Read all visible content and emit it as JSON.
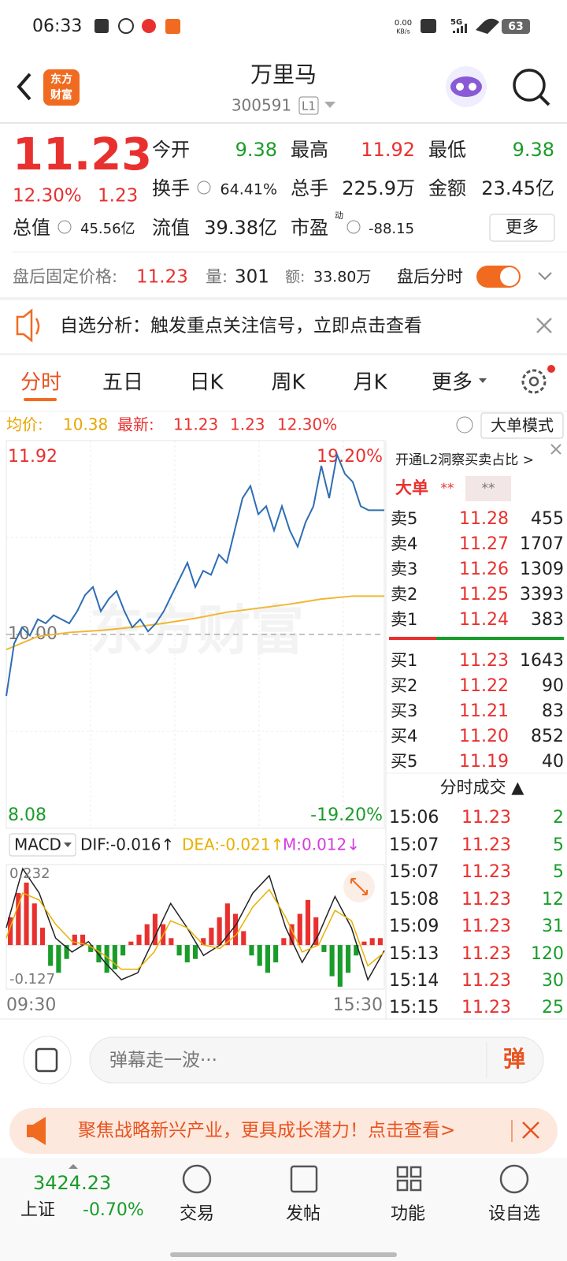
{
  "status_bar": {
    "time": "06:33",
    "net_speed": "0.00",
    "net_unit": "KB/s",
    "network": "5G",
    "battery": "63"
  },
  "header": {
    "logo_top": "东方",
    "logo_bottom": "财富",
    "name": "万里马",
    "code": "300591",
    "level": "L1"
  },
  "quote": {
    "price": "11.23",
    "change_pct": "12.30%",
    "change": "1.23",
    "open_label": "今开",
    "open": "9.38",
    "high_label": "最高",
    "high": "11.92",
    "low_label": "最低",
    "low": "9.38",
    "turnover_label": "换手",
    "turnover": "64.41%",
    "volume_label": "总手",
    "volume": "225.9万",
    "amount_label": "金额",
    "amount": "23.45亿",
    "mktcap_label": "总值",
    "mktcap": "45.56亿",
    "float_label": "流值",
    "float": "39.38亿",
    "pe_label": "市盈",
    "pe_mark": "动",
    "pe": "-88.15",
    "more": "更多"
  },
  "after_hours": {
    "price_label": "盘后固定价格:",
    "price": "11.23",
    "vol_label": "量:",
    "vol": "301",
    "amt_label": "额:",
    "amt": "33.80万",
    "toggle_label": "盘后分时"
  },
  "notice": "自选分析：触发重点关注信号，立即点击查看",
  "tabs": [
    "分时",
    "五日",
    "日K",
    "周K",
    "月K",
    "更多"
  ],
  "chart_info": {
    "avg_label": "均价:",
    "avg": "10.38",
    "latest_label": "最新:",
    "latest": "11.23",
    "change": "1.23",
    "change_pct": "12.30%",
    "mode": "大单模式"
  },
  "watermark": "东方财富",
  "chart_data": [
    {
      "type": "line",
      "ylim": [
        8.08,
        11.92
      ],
      "yticks": [
        11.92,
        {
          "value": 10,
          "label": "10.00"
        },
        8.08
      ],
      "y2lim": [
        -19.2,
        19.2
      ],
      "y2ticks": [
        {
          "value": 19.2,
          "label": "19.20%"
        },
        {
          "value": -19.2,
          "label": "-19.20%"
        }
      ],
      "series": [
        {
          "name": "价格",
          "color": "#2e6db4",
          "values": [
            9.39,
            9.91,
            10.07,
            9.99,
            10.15,
            10.11,
            10.19,
            10.15,
            10.11,
            10.23,
            10.39,
            10.47,
            10.23,
            10.35,
            10.43,
            10.23,
            10.07,
            10.15,
            10.03,
            10.11,
            10.23,
            10.39,
            10.55,
            10.71,
            10.47,
            10.63,
            10.59,
            10.79,
            10.71,
            11.03,
            11.35,
            11.47,
            11.19,
            11.27,
            11.03,
            11.27,
            11.03,
            10.87,
            11.11,
            11.27,
            11.67,
            11.35,
            11.78,
            11.59,
            11.51,
            11.27,
            11.23,
            11.23,
            11.23
          ]
        },
        {
          "name": "均价",
          "color": "#f2b632",
          "values": [
            9.85,
            9.98,
            10.02,
            10.04,
            10.07,
            10.11,
            10.16,
            10.22,
            10.26,
            10.3,
            10.35,
            10.38,
            10.38
          ]
        }
      ]
    },
    {
      "type": "macd",
      "indicator": "MACD",
      "ylim": [
        -0.127,
        0.232
      ],
      "yticks": [
        0.232,
        -0.127
      ],
      "histogram": {
        "color_up": "#e8312f",
        "color_down": "#1a9c2a",
        "values": [
          0.08,
          0.15,
          0.18,
          0.12,
          0.05,
          -0.06,
          -0.08,
          -0.04,
          0.03,
          0.03,
          -0.02,
          -0.05,
          -0.08,
          -0.07,
          -0.03,
          0.01,
          0.03,
          0.06,
          0.09,
          0.06,
          0.02,
          -0.03,
          -0.05,
          -0.04,
          0.02,
          0.05,
          0.08,
          0.12,
          0.09,
          0.04,
          -0.03,
          -0.06,
          -0.08,
          -0.05,
          0.02,
          0.06,
          0.09,
          0.13,
          0.08,
          -0.02,
          -0.09,
          -0.12,
          -0.08,
          -0.03,
          0.01,
          0.02,
          0.02
        ]
      },
      "series": [
        {
          "name": "DIF:-0.016↑",
          "color": "#222222",
          "values": [
            0.05,
            0.22,
            0.15,
            0.02,
            -0.02,
            0.01,
            -0.05,
            -0.1,
            -0.08,
            0.02,
            0.12,
            0.05,
            -0.03,
            0.0,
            0.06,
            0.15,
            0.2,
            0.05,
            -0.05,
            0.03,
            0.14,
            0.05,
            -0.1,
            -0.016
          ]
        },
        {
          "name": "DEA:-0.021↑",
          "color": "#e8b100",
          "values": [
            0.02,
            0.15,
            0.13,
            0.06,
            0.01,
            0.0,
            -0.03,
            -0.07,
            -0.07,
            -0.02,
            0.07,
            0.05,
            0.0,
            -0.01,
            0.03,
            0.11,
            0.16,
            0.08,
            -0.02,
            0.0,
            0.1,
            0.07,
            -0.06,
            -0.021
          ]
        }
      ],
      "m_label": "M:0.012↓",
      "m_color": "#d63adf",
      "x_labels": [
        "09:30",
        "15:30"
      ]
    }
  ],
  "order_book": {
    "title": "开通L2洞察买卖占比 >",
    "big_label": "大单",
    "big_value": "**",
    "big_value2": "**",
    "asks": [
      [
        "卖5",
        "11.28",
        "455"
      ],
      [
        "卖4",
        "11.27",
        "1707"
      ],
      [
        "卖3",
        "11.26",
        "1309"
      ],
      [
        "卖2",
        "11.25",
        "3393"
      ],
      [
        "卖1",
        "11.24",
        "383"
      ]
    ],
    "bids": [
      [
        "买1",
        "11.23",
        "1643"
      ],
      [
        "买2",
        "11.22",
        "90"
      ],
      [
        "买3",
        "11.21",
        "83"
      ],
      [
        "买4",
        "11.20",
        "852"
      ],
      [
        "买5",
        "11.19",
        "40"
      ]
    ],
    "trades_title": "分时成交 ▲",
    "trades": [
      [
        "15:06",
        "11.23",
        "2"
      ],
      [
        "15:07",
        "11.23",
        "5"
      ],
      [
        "15:07",
        "11.23",
        "5"
      ],
      [
        "15:08",
        "11.23",
        "12"
      ],
      [
        "15:09",
        "11.23",
        "31"
      ],
      [
        "15:13",
        "11.23",
        "120"
      ],
      [
        "15:14",
        "11.23",
        "30"
      ],
      [
        "15:15",
        "11.23",
        "25"
      ]
    ]
  },
  "comment": {
    "placeholder": "弹幕走一波···",
    "button": "弹"
  },
  "ad": "聚焦战略新兴产业，更具成长潜力！点击查看>",
  "bottom_nav": {
    "index_value": "3424.23",
    "index_name": "上证",
    "index_change": "-0.70%",
    "items": [
      "交易",
      "发帖",
      "功能",
      "设自选"
    ]
  }
}
